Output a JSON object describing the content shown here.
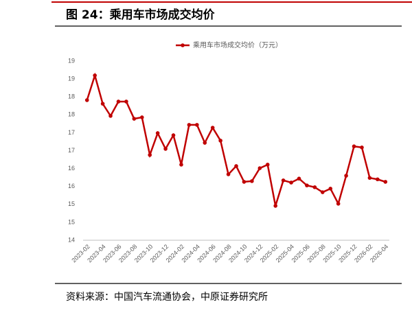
{
  "chart_data": {
    "type": "line",
    "title": "图 24：乘用车市场成交均价",
    "source": "资料来源：中国汽车流通协会，中原证券研究所",
    "categories": [
      "2023-02",
      null,
      "2023-04",
      null,
      "2023-06",
      null,
      "2023-08",
      null,
      "2023-10",
      null,
      "2023-12",
      null,
      "2024-02",
      null,
      "2024-04",
      null,
      "2024-06",
      null,
      "2024-08",
      null,
      "2024-10",
      null,
      "2024-12",
      null,
      "2025-02",
      null,
      "2025-04",
      null,
      "2025-06",
      null,
      "2025-08",
      null,
      "2025-10",
      null,
      "2025-12",
      null,
      "2026-02",
      null,
      "2026-04"
    ],
    "series": [
      {
        "name": "乘用车市场成交均价（万元）",
        "color": "#c00000",
        "values": [
          17.91,
          18.6,
          17.81,
          17.47,
          17.87,
          17.87,
          17.39,
          17.43,
          16.38,
          16.99,
          16.55,
          16.93,
          16.11,
          17.22,
          17.22,
          16.72,
          17.14,
          16.78,
          15.84,
          16.07,
          15.63,
          15.65,
          16.01,
          16.11,
          14.96,
          15.67,
          15.61,
          15.72,
          15.53,
          15.48,
          15.34,
          15.44,
          15.02,
          15.8,
          16.62,
          16.59,
          15.74,
          15.7,
          15.63
        ]
      }
    ],
    "ylim": [
      14,
      19
    ],
    "yticks": [
      14,
      {
        "value": 14.5,
        "label": "15"
      },
      15,
      {
        "value": 15.5,
        "label": "16"
      },
      16,
      {
        "value": 16.5,
        "label": "17"
      },
      17,
      {
        "value": 17.5,
        "label": "18"
      },
      18,
      {
        "value": 18.5,
        "label": "19"
      },
      19
    ],
    "grid": false,
    "legend": "top"
  }
}
